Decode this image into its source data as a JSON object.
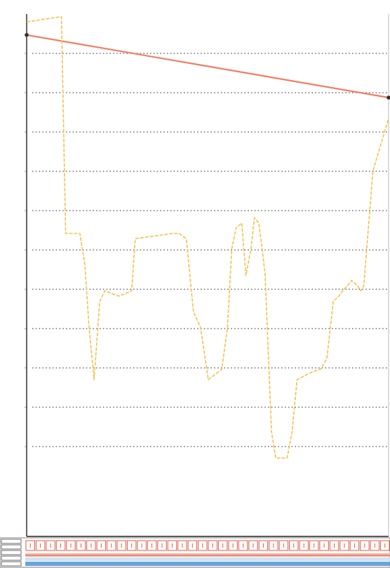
{
  "chart_data": {
    "type": "line",
    "title": "",
    "subtitle": "",
    "xlabel": "",
    "ylabel": "",
    "grid": true,
    "gridlines_y": 12,
    "xlim": [
      0,
      51
    ],
    "ylim": [
      0,
      100
    ],
    "series": [
      {
        "name": "",
        "color": "#f07c62",
        "style": "solid",
        "x": [
          0,
          51
        ],
        "y": [
          96,
          84
        ]
      },
      {
        "name": "",
        "color": "#f2c14e",
        "style": "dashed",
        "x": [
          0,
          2.5,
          4.9,
          5.5,
          7.5,
          8.2,
          8.8,
          9.5,
          10.3,
          11,
          13,
          14.8,
          15.3,
          18,
          20.5,
          21.5,
          22.5,
          23.5,
          24.5,
          25.6,
          27.5,
          28.3,
          28.9,
          29.5,
          30.3,
          30.9,
          31.6,
          32.1,
          32.7,
          33.2,
          33.6,
          34.5,
          35.1,
          36,
          36.7,
          37.4,
          38.1,
          39.5,
          40.3,
          41.4,
          42.3,
          43.2,
          44,
          44.5,
          45.2,
          45.8,
          46.6,
          47.1,
          47.5,
          48.8,
          51
        ],
        "y": [
          98.5,
          99,
          99.5,
          58,
          58,
          52,
          40,
          30,
          45,
          47,
          46,
          47,
          57,
          57.5,
          58,
          58,
          57,
          43,
          40,
          30,
          32,
          40,
          55,
          59,
          60,
          50,
          55,
          61,
          60,
          55,
          50,
          20,
          15,
          15,
          15,
          20,
          30,
          31,
          31.5,
          32,
          34,
          45,
          46,
          47,
          48,
          49,
          48,
          47,
          48,
          70,
          80
        ]
      }
    ],
    "bottom_panel": {
      "bars": 36,
      "fill_colors": [
        "#f6b8a8",
        "#cfe3f3",
        "#6aa4d8"
      ]
    }
  }
}
